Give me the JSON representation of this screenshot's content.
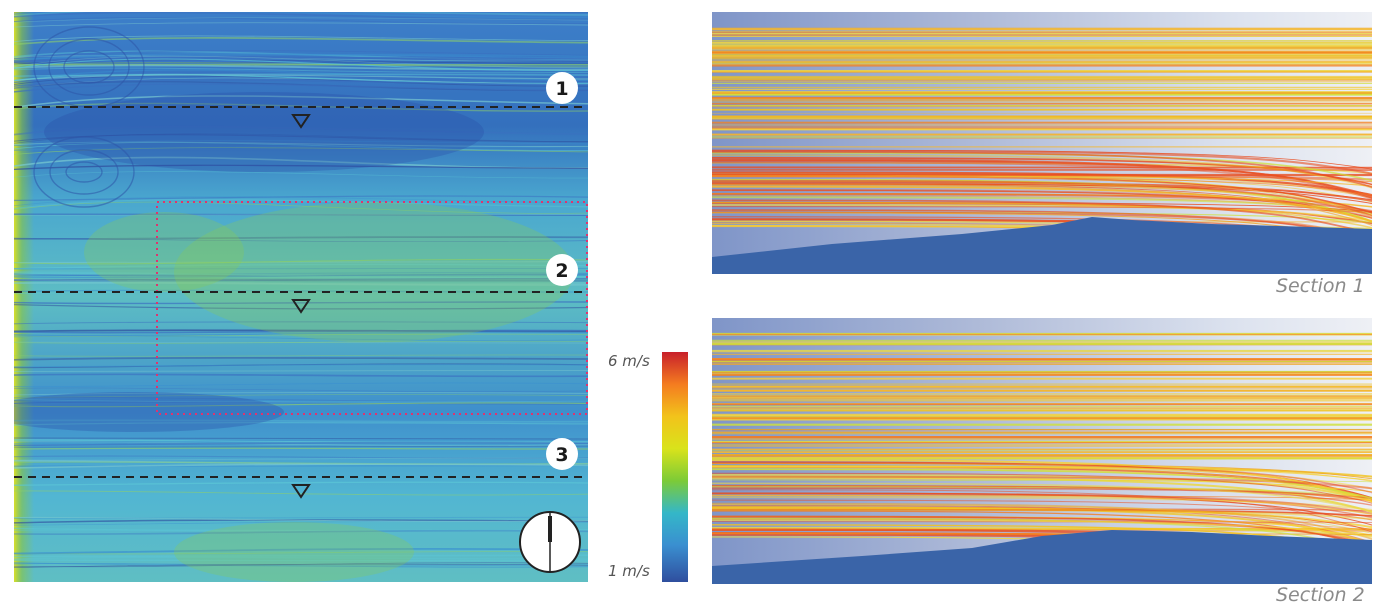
{
  "plan": {
    "sections": [
      {
        "number": "1"
      },
      {
        "number": "2"
      },
      {
        "number": "3"
      }
    ]
  },
  "colorbar": {
    "max_label": "6 m/s",
    "min_label": "1 m/s",
    "colors": [
      "#c8202b",
      "#f47c20",
      "#f2c31b",
      "#d9e31b",
      "#7ccb37",
      "#34b7c8",
      "#3a8fd0",
      "#2f4e9e"
    ]
  },
  "sections": [
    {
      "caption": "Section 1"
    },
    {
      "caption": "Section 2"
    }
  ],
  "colors": {
    "terrain": "#3a64a8",
    "highlight_box": "#e0336e",
    "section_line": "#222222"
  }
}
